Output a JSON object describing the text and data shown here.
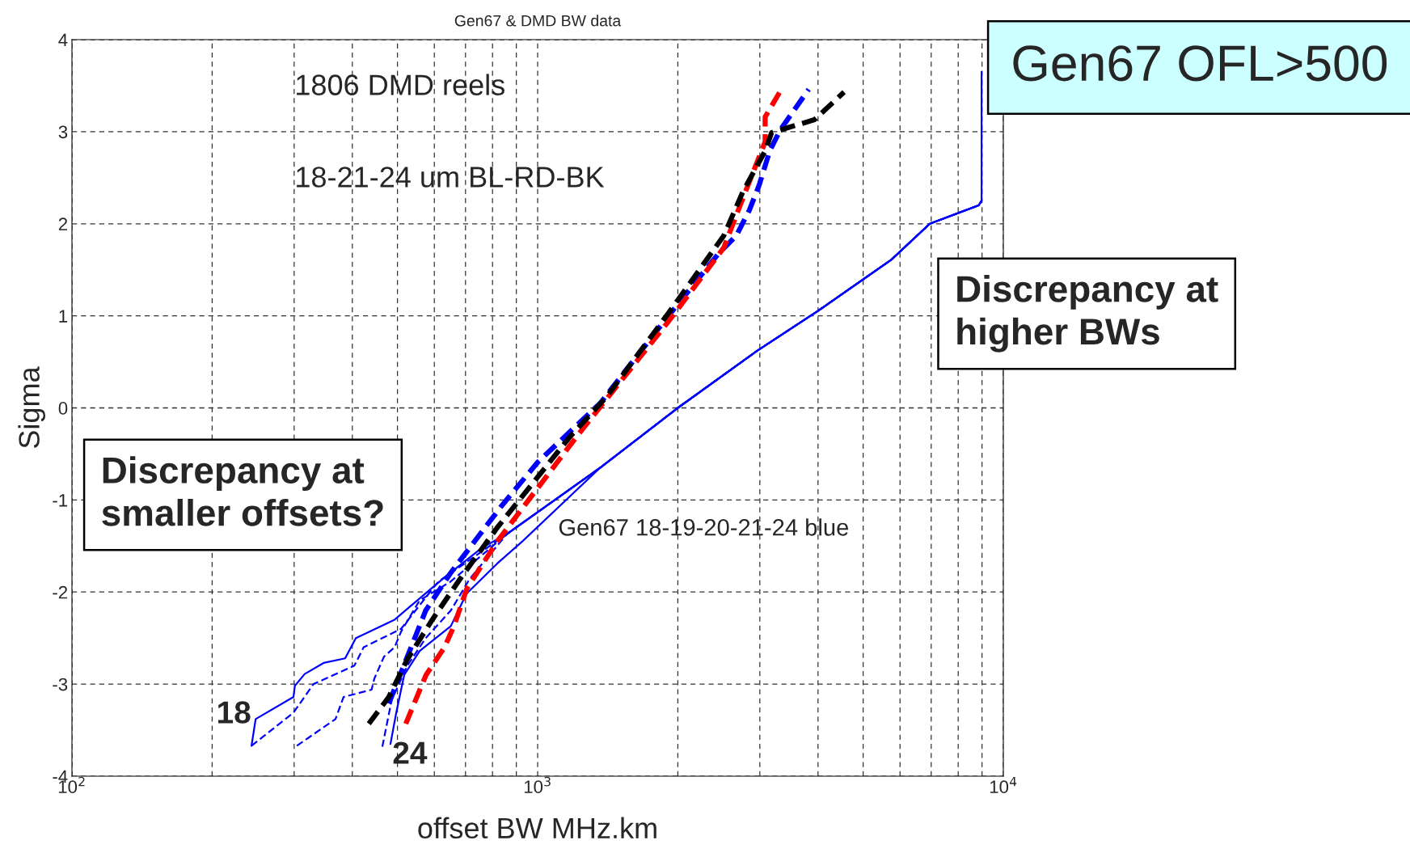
{
  "chart_data": {
    "type": "line",
    "title": "Gen67 & DMD BW data",
    "xlabel": "offset BW MHz.km",
    "ylabel": "Sigma",
    "log": "x",
    "xlim": [
      100,
      10000
    ],
    "xticks": [
      {
        "value": 100,
        "label": "10$^{2}$"
      },
      {
        "value": 1000,
        "label": "10$^{3}$"
      },
      {
        "value": 10000,
        "label": "10$^{4}$"
      }
    ],
    "ylim": [
      -4,
      4
    ],
    "yticks": [
      -4,
      -3,
      -2,
      -1,
      0,
      1,
      2,
      3,
      4
    ],
    "grid": true,
    "legend": false,
    "series": [
      {
        "color": "#0000ff",
        "line_style": "solid",
        "x": [
          243,
          248,
          299,
          301,
          316,
          347,
          386,
          407,
          493,
          631,
          759,
          859,
          1362,
          2000,
          2960,
          3990,
          5750,
          6950,
          8850,
          8980,
          8980
        ],
        "values": [
          -3.67,
          -3.38,
          -3.14,
          -3.02,
          -2.89,
          -2.77,
          -2.72,
          -2.5,
          -2.3,
          -1.84,
          -1.52,
          -1.37,
          -0.65,
          0,
          0.62,
          1.05,
          1.61,
          2.0,
          2.2,
          2.25,
          3.65
        ]
      },
      {
        "color": "#0000ff",
        "line_style": "dotted",
        "x": [
          243,
          299,
          330,
          404,
          423,
          509,
          611,
          859,
          1362,
          2000,
          2960,
          3990,
          5750,
          6950,
          8850,
          8980
        ],
        "values": [
          -3.67,
          -3.31,
          -3.0,
          -2.8,
          -2.6,
          -2.4,
          -1.89,
          -1.37,
          -0.65,
          0,
          0.62,
          1.05,
          1.61,
          2.0,
          2.2,
          2.25
        ]
      },
      {
        "color": "#0000ff",
        "line_style": "dotted",
        "x": [
          304,
          368,
          383,
          440,
          446,
          468,
          493,
          509,
          558,
          649,
          859,
          1362,
          2000,
          2960,
          3990,
          5750,
          6950,
          8850,
          8980
        ],
        "values": [
          -3.67,
          -3.38,
          -3.14,
          -3.06,
          -2.94,
          -2.7,
          -2.6,
          -2.43,
          -2.09,
          -1.89,
          -1.37,
          -0.65,
          0,
          0.62,
          1.05,
          1.61,
          2.0,
          2.2,
          2.25
        ]
      },
      {
        "color": "#0000ff",
        "line_style": "dotted",
        "x": [
          464,
          486,
          525,
          575,
          651,
          714,
          859,
          1362,
          2000,
          2960,
          3990,
          5750,
          6950,
          8850,
          8980
        ],
        "values": [
          -3.68,
          -3.17,
          -2.8,
          -2.5,
          -2.2,
          -1.86,
          -1.37,
          -0.65,
          0,
          0.62,
          1.05,
          1.61,
          2.0,
          2.2,
          2.25
        ]
      },
      {
        "color": "#0000ff",
        "line_style": "solid",
        "x": [
          483,
          497,
          517,
          558,
          651,
          703,
          819,
          927,
          1362,
          2000,
          2960,
          3990,
          5750,
          6950,
          8850,
          8980
        ],
        "values": [
          -3.65,
          -3.31,
          -2.9,
          -2.64,
          -2.37,
          -2.02,
          -1.69,
          -1.45,
          -0.65,
          0,
          0.62,
          1.05,
          1.61,
          2.0,
          2.2,
          2.25
        ]
      },
      {
        "color": "#0000ff",
        "line_style": "dashed",
        "x": [
          479,
          575,
          651,
          832,
          1000,
          1362,
          1910,
          2440,
          2670,
          2850,
          2990,
          3150,
          3320,
          3820
        ],
        "values": [
          -3.21,
          -2.2,
          -1.79,
          -1.08,
          -0.59,
          0.05,
          1.0,
          1.67,
          1.87,
          2.15,
          2.42,
          2.79,
          3.02,
          3.46
        ]
      },
      {
        "color": "#ff0000",
        "line_style": "dashed",
        "x": [
          521,
          576,
          631,
          661,
          705,
          819,
          1222,
          1910,
          2510,
          2760,
          3080,
          3080,
          3310
        ],
        "values": [
          -3.43,
          -2.9,
          -2.6,
          -2.37,
          -1.96,
          -1.45,
          -0.29,
          0.94,
          1.74,
          2.28,
          2.89,
          3.16,
          3.43
        ]
      },
      {
        "color": "#000000",
        "line_style": "dashed",
        "x": [
          434,
          479,
          525,
          594,
          681,
          819,
          1170,
          1406,
          1910,
          2510,
          2760,
          3080,
          3180,
          3930,
          4550
        ],
        "values": [
          -3.43,
          -3.14,
          -2.73,
          -2.3,
          -1.86,
          -1.3,
          -0.32,
          0.12,
          1.03,
          1.87,
          2.35,
          2.79,
          2.99,
          3.13,
          3.43
        ]
      }
    ],
    "annotations": [
      "1806 DMD reels",
      "18-21-24 um BL-RD-BK",
      "Gen67 18-19-20-21-24 blue",
      "Discrepancy at smaller offsets?",
      "Discrepancy at higher BWs",
      "Gen67 OFL>500",
      "18",
      "24"
    ]
  }
}
